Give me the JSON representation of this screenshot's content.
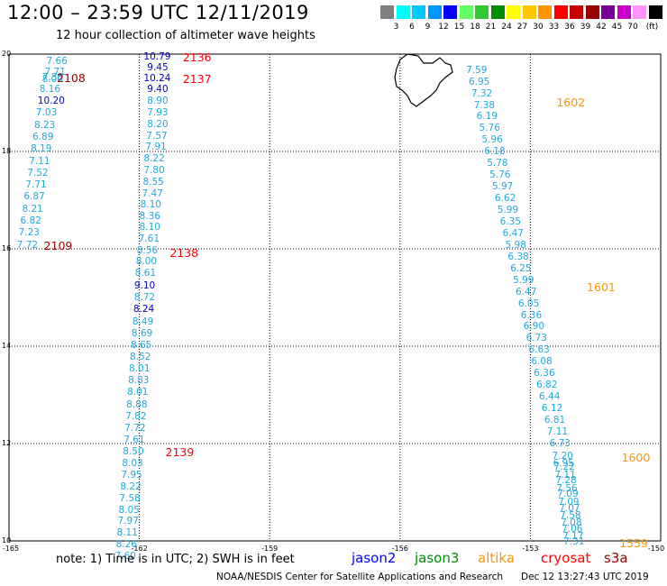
{
  "title": "12:00 – 23:59 UTC 12/11/2019",
  "subtitle": "12 hour collection of altimeter wave heights",
  "color_scale": {
    "unit": "(ft)",
    "bins": [
      {
        "label": "",
        "color": "#808080"
      },
      {
        "label": "3",
        "color": "#00ffff"
      },
      {
        "label": "6",
        "color": "#00c8ff"
      },
      {
        "label": "9",
        "color": "#0096ff"
      },
      {
        "label": "12",
        "color": "#0000ff"
      },
      {
        "label": "15",
        "color": "#64ff64"
      },
      {
        "label": "18",
        "color": "#32c832"
      },
      {
        "label": "21",
        "color": "#008c00"
      },
      {
        "label": "24",
        "color": "#ffff00"
      },
      {
        "label": "27",
        "color": "#ffc800"
      },
      {
        "label": "30",
        "color": "#ff9600"
      },
      {
        "label": "33",
        "color": "#ff0000"
      },
      {
        "label": "36",
        "color": "#c80000"
      },
      {
        "label": "39",
        "color": "#960000"
      },
      {
        "label": "42",
        "color": "#780096"
      },
      {
        "label": "45",
        "color": "#c800c8"
      },
      {
        "label": "70",
        "color": "#ff96ff"
      },
      {
        "label": "",
        "color": "#000000"
      }
    ]
  },
  "axes": {
    "lat_labels": [
      "20",
      "18",
      "16",
      "14",
      "12",
      "10"
    ],
    "lon_labels": [
      "-165",
      "-162",
      "-159",
      "-156",
      "-153",
      "-150"
    ],
    "lat_range": [
      10,
      20
    ],
    "lon_range": [
      -165,
      -150
    ],
    "grid": "dotted"
  },
  "colors": {
    "light": "#1eaadc",
    "dark": "#0000c8",
    "jason2": "#0000ff",
    "jason3": "#008c00",
    "altika": "#ff9600",
    "cryosat": "#ff0000",
    "s3a": "#960000"
  },
  "tracks": [
    {
      "pass_label": "2108",
      "pass_color": "#960000",
      "pass_lat": 19.5,
      "pass_lon": -163.9,
      "points": [
        {
          "lat": 19.84,
          "lon": -164.14,
          "v": "7.66",
          "c": "light"
        },
        {
          "lat": 19.62,
          "lon": -164.18,
          "v": "7.71",
          "c": "light"
        },
        {
          "lat": 19.5,
          "lon": -164.24,
          "v": "7.38",
          "c": "light"
        },
        {
          "lat": 19.46,
          "lon": -164.24,
          "v": "8.00",
          "c": "light"
        },
        {
          "lat": 19.26,
          "lon": -164.3,
          "v": "8.16",
          "c": "light"
        },
        {
          "lat": 19.02,
          "lon": -164.34,
          "v": "10.20",
          "c": "dark"
        },
        {
          "lat": 18.78,
          "lon": -164.38,
          "v": "7.03",
          "c": "light"
        },
        {
          "lat": 18.52,
          "lon": -164.42,
          "v": "8.23",
          "c": "light"
        },
        {
          "lat": 18.28,
          "lon": -164.46,
          "v": "6.89",
          "c": "light"
        },
        {
          "lat": 18.04,
          "lon": -164.5,
          "v": "8.19",
          "c": "light"
        },
        {
          "lat": 17.78,
          "lon": -164.54,
          "v": "7.11",
          "c": "light"
        },
        {
          "lat": 17.54,
          "lon": -164.58,
          "v": "7.52",
          "c": "light"
        },
        {
          "lat": 17.3,
          "lon": -164.62,
          "v": "7.71",
          "c": "light"
        },
        {
          "lat": 17.06,
          "lon": -164.66,
          "v": "6.87",
          "c": "light"
        },
        {
          "lat": 16.8,
          "lon": -164.7,
          "v": "8.21",
          "c": "light"
        },
        {
          "lat": 16.56,
          "lon": -164.74,
          "v": "6.82",
          "c": "light"
        },
        {
          "lat": 16.32,
          "lon": -164.78,
          "v": "7.23",
          "c": "light"
        },
        {
          "lat": 16.06,
          "lon": -164.82,
          "v": "7.72",
          "c": "light"
        }
      ]
    },
    {
      "pass_label": "2109",
      "pass_color": "#960000",
      "pass_lat": 16.06,
      "pass_lon": -164.2,
      "points": []
    },
    {
      "pass_label": "2136",
      "pass_color": "#ff0000",
      "pass_lat": 19.93,
      "pass_lon": -161.0,
      "points": [
        {
          "lat": 19.93,
          "lon": -161.9,
          "v": "10.79",
          "c": "dark"
        },
        {
          "lat": 19.7,
          "lon": -161.82,
          "v": "9.45",
          "c": "dark"
        },
        {
          "lat": 19.48,
          "lon": -161.9,
          "v": "10.24",
          "c": "dark"
        },
        {
          "lat": 19.26,
          "lon": -161.82,
          "v": "9.40",
          "c": "dark"
        }
      ]
    },
    {
      "pass_label": "2137",
      "pass_color": "#ff0000",
      "pass_lat": 19.48,
      "pass_lon": -161.0,
      "points": [
        {
          "lat": 19.02,
          "lon": -161.82,
          "v": "8.90",
          "c": "light"
        },
        {
          "lat": 18.78,
          "lon": -161.82,
          "v": "7.93",
          "c": "light"
        },
        {
          "lat": 18.54,
          "lon": -161.82,
          "v": "8.20",
          "c": "light"
        },
        {
          "lat": 18.3,
          "lon": -161.84,
          "v": "7.57",
          "c": "light"
        },
        {
          "lat": 18.08,
          "lon": -161.86,
          "v": "7.91",
          "c": "light"
        },
        {
          "lat": 17.84,
          "lon": -161.9,
          "v": "8.22",
          "c": "light"
        },
        {
          "lat": 17.6,
          "lon": -161.9,
          "v": "7.80",
          "c": "light"
        },
        {
          "lat": 17.36,
          "lon": -161.92,
          "v": "8.55",
          "c": "light"
        },
        {
          "lat": 17.12,
          "lon": -161.94,
          "v": "7.47",
          "c": "light"
        },
        {
          "lat": 16.88,
          "lon": -161.98,
          "v": "8.10",
          "c": "light"
        },
        {
          "lat": 16.64,
          "lon": -162.0,
          "v": "8.36",
          "c": "light"
        },
        {
          "lat": 16.42,
          "lon": -162.0,
          "v": "8.10",
          "c": "light"
        },
        {
          "lat": 16.18,
          "lon": -162.02,
          "v": "7.61",
          "c": "light"
        },
        {
          "lat": 15.94,
          "lon": -162.06,
          "v": "8.56",
          "c": "light"
        }
      ]
    },
    {
      "pass_label": "2138",
      "pass_color": "#ff0000",
      "pass_lat": 15.9,
      "pass_lon": -161.3,
      "points": [
        {
          "lat": 15.72,
          "lon": -162.08,
          "v": "8.00",
          "c": "light"
        },
        {
          "lat": 15.48,
          "lon": -162.1,
          "v": "8.61",
          "c": "light"
        },
        {
          "lat": 15.22,
          "lon": -162.12,
          "v": "9.10",
          "c": "dark"
        },
        {
          "lat": 14.98,
          "lon": -162.12,
          "v": "8.72",
          "c": "light"
        },
        {
          "lat": 14.74,
          "lon": -162.14,
          "v": "8.24",
          "c": "dark"
        },
        {
          "lat": 14.48,
          "lon": -162.16,
          "v": "8.49",
          "c": "light"
        },
        {
          "lat": 14.24,
          "lon": -162.18,
          "v": "8.69",
          "c": "light"
        },
        {
          "lat": 14.0,
          "lon": -162.2,
          "v": "8.65",
          "c": "light"
        },
        {
          "lat": 13.76,
          "lon": -162.22,
          "v": "8.52",
          "c": "light"
        },
        {
          "lat": 13.52,
          "lon": -162.24,
          "v": "8.01",
          "c": "light"
        },
        {
          "lat": 13.28,
          "lon": -162.26,
          "v": "8.83",
          "c": "light"
        },
        {
          "lat": 13.04,
          "lon": -162.28,
          "v": "8.01",
          "c": "light"
        },
        {
          "lat": 12.78,
          "lon": -162.3,
          "v": "8.88",
          "c": "light"
        },
        {
          "lat": 12.54,
          "lon": -162.32,
          "v": "7.82",
          "c": "light"
        },
        {
          "lat": 12.3,
          "lon": -162.34,
          "v": "7.72",
          "c": "light"
        },
        {
          "lat": 12.06,
          "lon": -162.36,
          "v": "7.61",
          "c": "light"
        }
      ]
    },
    {
      "pass_label": "2139",
      "pass_color": "#ff0000",
      "pass_lat": 11.82,
      "pass_lon": -161.4,
      "points": [
        {
          "lat": 11.82,
          "lon": -162.38,
          "v": "8.50",
          "c": "light"
        },
        {
          "lat": 11.58,
          "lon": -162.4,
          "v": "8.03",
          "c": "light"
        },
        {
          "lat": 11.34,
          "lon": -162.42,
          "v": "7.95",
          "c": "light"
        },
        {
          "lat": 11.1,
          "lon": -162.44,
          "v": "8.22",
          "c": "light"
        },
        {
          "lat": 10.86,
          "lon": -162.46,
          "v": "7.58",
          "c": "light"
        },
        {
          "lat": 10.62,
          "lon": -162.48,
          "v": "8.05",
          "c": "light"
        },
        {
          "lat": 10.38,
          "lon": -162.5,
          "v": "7.97",
          "c": "light"
        },
        {
          "lat": 10.14,
          "lon": -162.52,
          "v": "8.11",
          "c": "light"
        },
        {
          "lat": 9.9,
          "lon": -162.54,
          "v": "8.26",
          "c": "light"
        },
        {
          "lat": 9.66,
          "lon": -162.56,
          "v": "7.60",
          "c": "light"
        }
      ]
    },
    {
      "pass_label": "1602",
      "pass_color": "#ff9600",
      "pass_lat": 19.0,
      "pass_lon": -152.4,
      "points": [
        {
          "lat": 19.64,
          "lon": -154.48,
          "v": "7.59",
          "c": "light"
        },
        {
          "lat": 19.4,
          "lon": -154.42,
          "v": "6.95",
          "c": "light"
        },
        {
          "lat": 19.16,
          "lon": -154.36,
          "v": "7.32",
          "c": "light"
        },
        {
          "lat": 18.92,
          "lon": -154.3,
          "v": "7.38",
          "c": "light"
        },
        {
          "lat": 18.7,
          "lon": -154.24,
          "v": "6.19",
          "c": "light"
        },
        {
          "lat": 18.46,
          "lon": -154.18,
          "v": "5.76",
          "c": "light"
        },
        {
          "lat": 18.22,
          "lon": -154.12,
          "v": "5.96",
          "c": "light"
        },
        {
          "lat": 17.98,
          "lon": -154.06,
          "v": "6.18",
          "c": "light"
        },
        {
          "lat": 17.74,
          "lon": -154.0,
          "v": "5.78",
          "c": "light"
        },
        {
          "lat": 17.5,
          "lon": -153.94,
          "v": "5.76",
          "c": "light"
        },
        {
          "lat": 17.26,
          "lon": -153.88,
          "v": "5.97",
          "c": "light"
        },
        {
          "lat": 17.02,
          "lon": -153.82,
          "v": "6.62",
          "c": "light"
        },
        {
          "lat": 16.78,
          "lon": -153.76,
          "v": "5.99",
          "c": "light"
        },
        {
          "lat": 16.54,
          "lon": -153.7,
          "v": "6.35",
          "c": "light"
        },
        {
          "lat": 16.3,
          "lon": -153.64,
          "v": "6.47",
          "c": "light"
        },
        {
          "lat": 16.06,
          "lon": -153.58,
          "v": "5.98",
          "c": "light"
        }
      ]
    },
    {
      "pass_label": "1601",
      "pass_color": "#ff9600",
      "pass_lat": 15.2,
      "pass_lon": -151.7,
      "points": [
        {
          "lat": 15.82,
          "lon": -153.52,
          "v": "6.38",
          "c": "light"
        },
        {
          "lat": 15.58,
          "lon": -153.46,
          "v": "6.25",
          "c": "light"
        },
        {
          "lat": 15.34,
          "lon": -153.4,
          "v": "5.99",
          "c": "light"
        },
        {
          "lat": 15.1,
          "lon": -153.34,
          "v": "6.47",
          "c": "light"
        },
        {
          "lat": 14.86,
          "lon": -153.28,
          "v": "6.05",
          "c": "light"
        },
        {
          "lat": 14.62,
          "lon": -153.22,
          "v": "6.36",
          "c": "light"
        },
        {
          "lat": 14.38,
          "lon": -153.16,
          "v": "6.90",
          "c": "light"
        },
        {
          "lat": 14.14,
          "lon": -153.1,
          "v": "6.73",
          "c": "light"
        },
        {
          "lat": 13.9,
          "lon": -153.04,
          "v": "6.63",
          "c": "light"
        },
        {
          "lat": 13.66,
          "lon": -152.98,
          "v": "6.08",
          "c": "light"
        },
        {
          "lat": 13.42,
          "lon": -152.92,
          "v": "6.36",
          "c": "light"
        },
        {
          "lat": 13.18,
          "lon": -152.86,
          "v": "6.82",
          "c": "light"
        },
        {
          "lat": 12.94,
          "lon": -152.8,
          "v": "6.44",
          "c": "light"
        },
        {
          "lat": 12.7,
          "lon": -152.74,
          "v": "6.12",
          "c": "light"
        },
        {
          "lat": 12.46,
          "lon": -152.68,
          "v": "6.81",
          "c": "light"
        },
        {
          "lat": 12.22,
          "lon": -152.62,
          "v": "7.11",
          "c": "light"
        },
        {
          "lat": 11.98,
          "lon": -152.56,
          "v": "6.73",
          "c": "light"
        }
      ]
    },
    {
      "pass_label": "1600",
      "pass_color": "#ff9600",
      "pass_lat": 11.7,
      "pass_lon": -150.9,
      "points": [
        {
          "lat": 11.72,
          "lon": -152.5,
          "v": "7.20",
          "c": "light"
        },
        {
          "lat": 11.58,
          "lon": -152.48,
          "v": "6.95",
          "c": "light"
        },
        {
          "lat": 11.5,
          "lon": -152.46,
          "v": "7.22",
          "c": "light"
        },
        {
          "lat": 11.34,
          "lon": -152.44,
          "v": "7.11",
          "c": "light"
        },
        {
          "lat": 11.22,
          "lon": -152.42,
          "v": "7.28",
          "c": "light"
        },
        {
          "lat": 11.06,
          "lon": -152.4,
          "v": "7.56",
          "c": "light"
        },
        {
          "lat": 10.94,
          "lon": -152.38,
          "v": "7.09",
          "c": "light"
        },
        {
          "lat": 10.78,
          "lon": -152.36,
          "v": "7.09",
          "c": "light"
        },
        {
          "lat": 10.64,
          "lon": -152.34,
          "v": "7.07",
          "c": "light"
        },
        {
          "lat": 10.5,
          "lon": -152.32,
          "v": "7.58",
          "c": "light"
        },
        {
          "lat": 10.36,
          "lon": -152.3,
          "v": "7.08",
          "c": "light"
        },
        {
          "lat": 10.22,
          "lon": -152.28,
          "v": "7.06",
          "c": "light"
        },
        {
          "lat": 10.08,
          "lon": -152.26,
          "v": "7.17",
          "c": "light"
        },
        {
          "lat": 9.96,
          "lon": -152.24,
          "v": "7.31",
          "c": "light"
        }
      ]
    },
    {
      "pass_label": "1559",
      "pass_color": "#ff9600",
      "pass_lat": 9.95,
      "pass_lon": -150.95,
      "points": []
    }
  ],
  "footer": {
    "note": "note: 1) Time is in UTC; 2) SWH is in feet",
    "satellites": [
      {
        "name": "jason2",
        "color": "#0000ff"
      },
      {
        "name": "jason3",
        "color": "#008c00"
      },
      {
        "name": "altika",
        "color": "#ff9600"
      },
      {
        "name": "cryosat",
        "color": "#ff0000"
      },
      {
        "name": "s3a",
        "color": "#960000"
      }
    ],
    "credit": "NOAA/NESDIS Center for Satellite Applications and Research",
    "timestamp": "Dec 12 13:27:43 UTC 2019"
  }
}
